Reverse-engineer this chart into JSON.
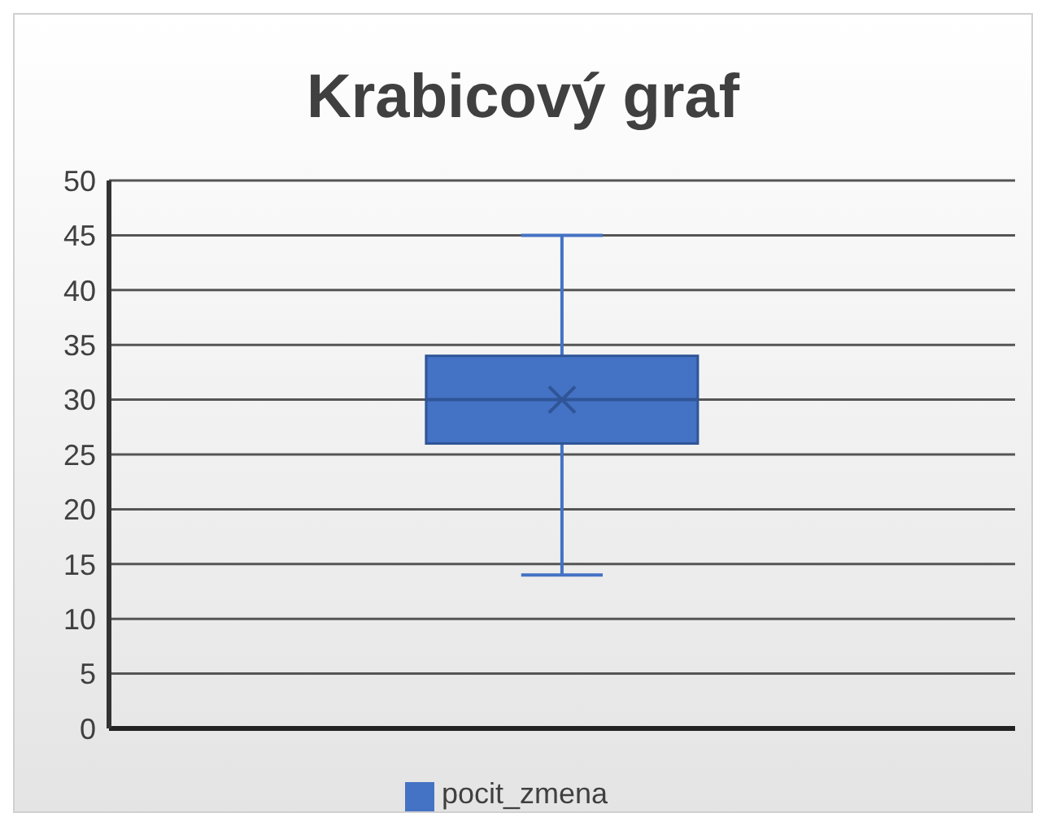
{
  "chart_data": {
    "type": "box",
    "title": "Krabicový graf",
    "categories": [
      null
    ],
    "series": [
      {
        "name": "pocit_zmena",
        "color": "#4472c4",
        "boxes": [
          {
            "low": 14,
            "q1": 26,
            "median": 30,
            "q3": 34,
            "high": 45,
            "mean": 30
          }
        ]
      }
    ],
    "ylim": [
      0,
      50
    ],
    "yticks": [
      0,
      5,
      10,
      15,
      20,
      25,
      30,
      35,
      40,
      45,
      50
    ],
    "grid": "y",
    "legend": "bottom"
  }
}
